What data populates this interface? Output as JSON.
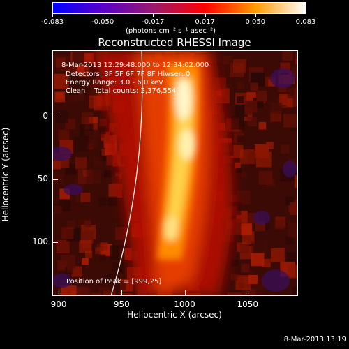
{
  "colorbar": {
    "tick_labels": [
      "-0.083",
      "-0.050",
      "-0.017",
      "0.017",
      "0.050",
      "0.083"
    ],
    "tick_values": [
      -0.083,
      -0.05,
      -0.017,
      0.017,
      0.05,
      0.083
    ],
    "range": [
      -0.083,
      0.083
    ],
    "units": "(photons cm⁻² s⁻¹ asec⁻²)",
    "colormap": [
      "#0000ff",
      "#5a00c8",
      "#9a1a6a",
      "#ff0000",
      "#ff9a00",
      "#ffffff"
    ]
  },
  "title": "Reconstructed RHESSI Image",
  "annotations": {
    "time_range": "8-Mar-2013 12:29:48.000 to 12:34:02.000",
    "detectors": "Detectors: 3F 5F 6F 7F 8F Hiwser: 0",
    "energy_range": "Energy Range: 3.0 - 6.0 keV",
    "method": "Clean    Total counts: 2,376,554",
    "peak_position": "Position of Peak = [999,25]"
  },
  "axes": {
    "x_label": "Heliocentric X (arcsec)",
    "y_label": "Heliocentric Y (arcsec)",
    "x_ticks": [
      "900",
      "950",
      "1000",
      "1050"
    ],
    "y_ticks": [
      "0",
      "-50",
      "-100"
    ],
    "xlim": [
      895,
      1090
    ],
    "ylim": [
      -143,
      53
    ]
  },
  "limb_curve": "solar limb",
  "footer": {
    "timestamp": "8-Mar-2013 13:19"
  }
}
